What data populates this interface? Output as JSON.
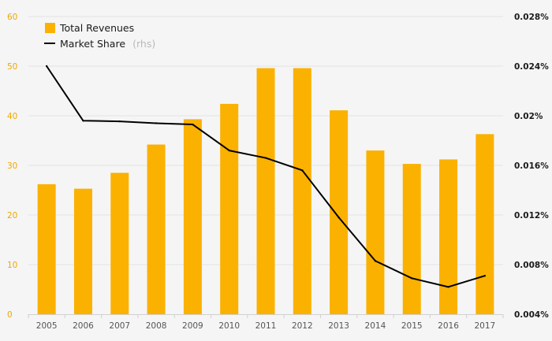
{
  "chart_data": {
    "type": "bar+line",
    "categories": [
      "2005",
      "2006",
      "2007",
      "2008",
      "2009",
      "2010",
      "2011",
      "2012",
      "2013",
      "2014",
      "2015",
      "2016",
      "2017"
    ],
    "series": [
      {
        "name": "Total Revenues",
        "type": "bar",
        "axis": "left",
        "values": [
          26.2,
          25.3,
          28.5,
          34.2,
          39.3,
          42.4,
          49.6,
          49.6,
          41.1,
          33.0,
          30.3,
          31.2,
          36.3
        ]
      },
      {
        "name": "Market Share",
        "name_suffix": "(rhs)",
        "type": "line",
        "axis": "right",
        "values": [
          0.024,
          0.0196,
          0.01955,
          0.0194,
          0.0193,
          0.0172,
          0.0166,
          0.0156,
          0.0118,
          0.0083,
          0.0069,
          0.0062,
          0.0071
        ]
      }
    ],
    "y_left": {
      "min": 0,
      "max": 60,
      "ticks": [
        0,
        10,
        20,
        30,
        40,
        50,
        60
      ],
      "tick_labels": [
        "0",
        "10",
        "20",
        "30",
        "40",
        "50",
        "60"
      ]
    },
    "y_right": {
      "min": 0.004,
      "max": 0.028,
      "ticks": [
        0.004,
        0.008,
        0.012,
        0.016,
        0.02,
        0.024,
        0.028
      ],
      "tick_labels": [
        "0.004%",
        "0.008%",
        "0.012%",
        "0.016%",
        "0.02%",
        "0.024%",
        "0.028%"
      ]
    },
    "title": "",
    "xlabel": "",
    "ylabel": "",
    "grid": true,
    "legend_position": "top-left",
    "colors": {
      "bar": "#fbb100",
      "line": "#000000",
      "grid": "#e4e4e4",
      "left_ticks": "#f0a800",
      "background": "#f5f5f5"
    }
  }
}
